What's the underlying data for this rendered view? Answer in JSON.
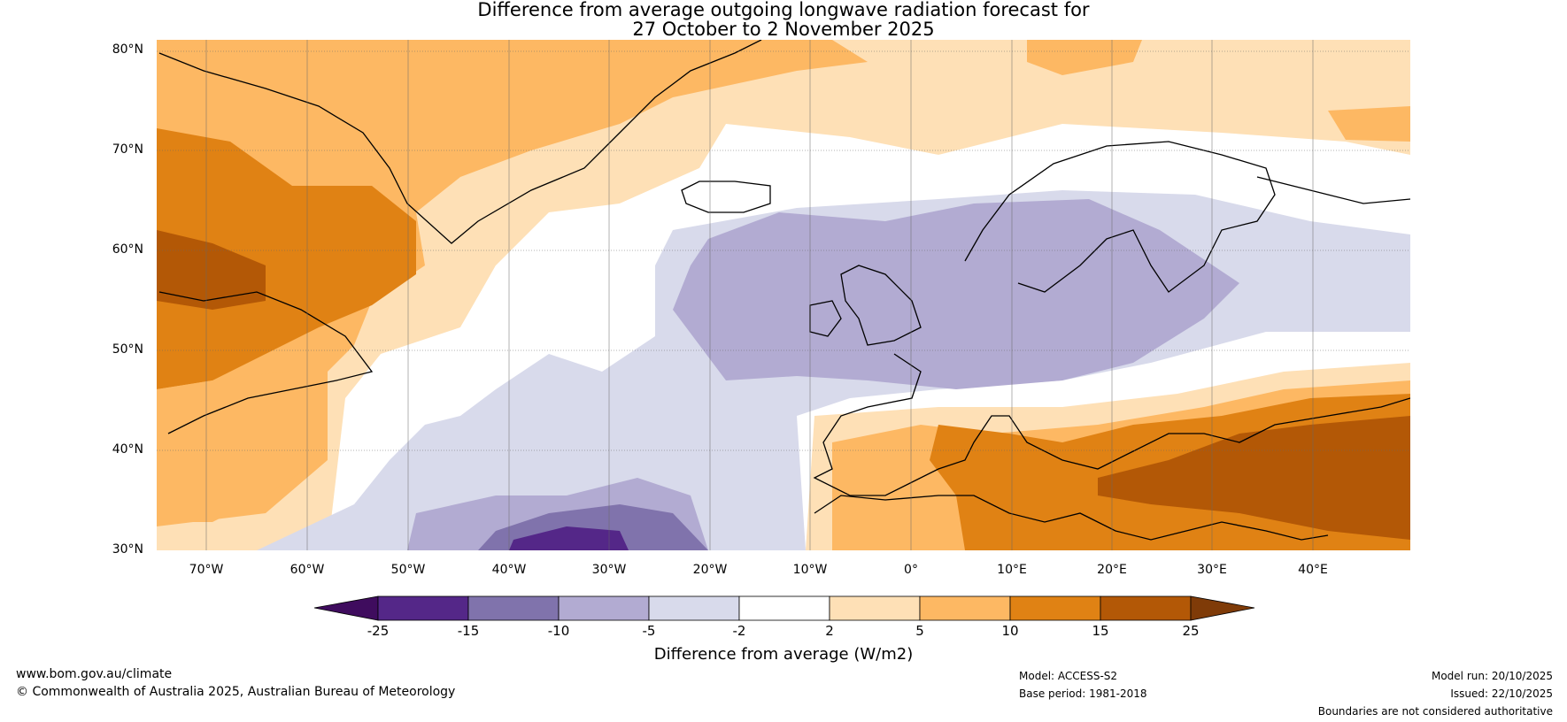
{
  "title_line1": "Difference from average outgoing longwave radiation forecast for",
  "title_line2": "27 October to 2 November 2025",
  "latitudes": [
    "80°N",
    "70°N",
    "60°N",
    "50°N",
    "40°N",
    "30°N"
  ],
  "longitudes": [
    "70°W",
    "60°W",
    "50°W",
    "40°W",
    "30°W",
    "20°W",
    "10°W",
    "0°",
    "10°E",
    "20°E",
    "30°E",
    "40°E"
  ],
  "colorbar": {
    "ticks": [
      "-25",
      "-15",
      "-10",
      "-5",
      "-2",
      "2",
      "5",
      "10",
      "15",
      "25"
    ],
    "colors": [
      "#3f0c5e",
      "#542788",
      "#8073ac",
      "#b2abd2",
      "#d8daeb",
      "#ffffff",
      "#fee0b6",
      "#fdb863",
      "#e08214",
      "#b35806",
      "#7f3b08"
    ],
    "label": "Difference from average (W/m2)"
  },
  "footer": {
    "website": "www.bom.gov.au/climate",
    "copyright": "© Commonwealth of Australia 2025, Australian Bureau of Meteorology",
    "model": "Model: ACCESS-S2",
    "base_period": "Base period: 1981-2018",
    "model_run": "Model run: 20/10/2025",
    "issued": "Issued: 22/10/2025",
    "disclaimer": "Boundaries are not considered authoritative"
  }
}
